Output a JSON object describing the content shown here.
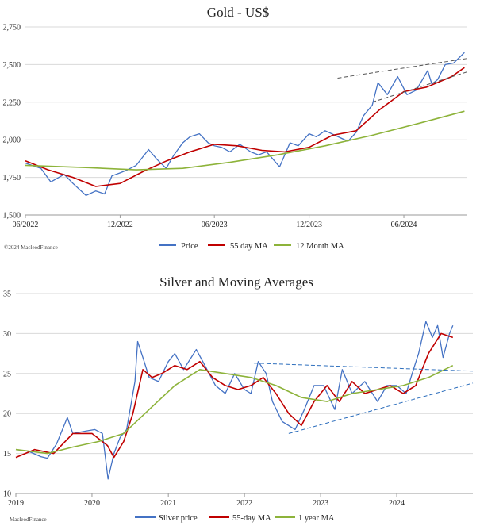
{
  "chart_data": [
    {
      "type": "line",
      "title": "Gold - US$",
      "credit": "©2024 MacleodFinance",
      "ylim": [
        1500,
        2750
      ],
      "yticks": [
        "1,500",
        "1,750",
        "2,000",
        "2,250",
        "2,500",
        "2,750"
      ],
      "yticks_values": [
        1500,
        1750,
        2000,
        2250,
        2500,
        2750
      ],
      "xlim": [
        "2022-06-01",
        "2024-09-30"
      ],
      "xticks": [
        "06/2022",
        "12/2022",
        "06/2023",
        "12/2023",
        "06/2024"
      ],
      "xticks_dates": [
        "2022-06-01",
        "2022-12-01",
        "2023-06-01",
        "2023-12-01",
        "2024-06-01"
      ],
      "grid": "horizontal",
      "legend": "bottom",
      "colors": {
        "price": "#4472c4",
        "ma55": "#c00000",
        "ma12": "#8db33a",
        "trend": "#555555"
      },
      "series": [
        {
          "name": "Price",
          "x": [
            "2022-06-01",
            "2022-07-01",
            "2022-07-20",
            "2022-08-15",
            "2022-09-01",
            "2022-09-26",
            "2022-10-15",
            "2022-11-01",
            "2022-11-15",
            "2022-12-01",
            "2022-12-15",
            "2023-01-01",
            "2023-01-25",
            "2023-02-10",
            "2023-02-28",
            "2023-03-15",
            "2023-04-01",
            "2023-04-15",
            "2023-05-03",
            "2023-05-20",
            "2023-06-01",
            "2023-06-15",
            "2023-07-01",
            "2023-07-20",
            "2023-08-10",
            "2023-08-25",
            "2023-09-10",
            "2023-10-05",
            "2023-10-25",
            "2023-11-10",
            "2023-12-01",
            "2023-12-15",
            "2024-01-01",
            "2024-01-20",
            "2024-02-14",
            "2024-03-01",
            "2024-03-15",
            "2024-04-01",
            "2024-04-12",
            "2024-04-30",
            "2024-05-20",
            "2024-06-07",
            "2024-06-25",
            "2024-07-17",
            "2024-07-25",
            "2024-08-05",
            "2024-08-20",
            "2024-09-05",
            "2024-09-20",
            "2024-09-26"
          ],
          "values": [
            1845,
            1810,
            1720,
            1770,
            1710,
            1630,
            1660,
            1640,
            1760,
            1780,
            1800,
            1830,
            1935,
            1870,
            1810,
            1900,
            1980,
            2020,
            2040,
            1980,
            1960,
            1950,
            1920,
            1970,
            1920,
            1900,
            1920,
            1820,
            1980,
            1960,
            2040,
            2020,
            2060,
            2030,
            1990,
            2050,
            2160,
            2230,
            2380,
            2300,
            2420,
            2300,
            2330,
            2460,
            2370,
            2400,
            2500,
            2510,
            2560,
            2580
          ]
        },
        {
          "name": "55 day MA",
          "x": [
            "2022-06-01",
            "2022-07-15",
            "2022-09-01",
            "2022-10-15",
            "2022-12-01",
            "2023-01-15",
            "2023-03-01",
            "2023-04-15",
            "2023-06-01",
            "2023-07-15",
            "2023-09-01",
            "2023-10-15",
            "2023-12-01",
            "2024-01-15",
            "2024-03-01",
            "2024-04-15",
            "2024-06-01",
            "2024-07-15",
            "2024-09-01",
            "2024-09-26"
          ],
          "values": [
            1860,
            1800,
            1750,
            1690,
            1710,
            1790,
            1860,
            1920,
            1970,
            1960,
            1930,
            1920,
            1950,
            2030,
            2060,
            2200,
            2320,
            2350,
            2420,
            2480
          ]
        },
        {
          "name": "12 Month MA",
          "x": [
            "2022-06-01",
            "2022-10-01",
            "2023-01-01",
            "2023-04-01",
            "2023-07-01",
            "2023-10-01",
            "2024-01-01",
            "2024-04-01",
            "2024-07-01",
            "2024-09-26"
          ],
          "values": [
            1830,
            1815,
            1800,
            1810,
            1850,
            1900,
            1960,
            2030,
            2110,
            2190
          ]
        }
      ],
      "trend_lines": [
        {
          "from": [
            "2024-01-25",
            2410
          ],
          "to": [
            "2024-09-30",
            2540
          ]
        },
        {
          "from": [
            "2024-04-01",
            2250
          ],
          "to": [
            "2024-09-30",
            2450
          ]
        }
      ]
    },
    {
      "type": "line",
      "title": "Silver and Moving Averages",
      "credit": "MacleodFinance",
      "ylim": [
        10,
        35
      ],
      "yticks": [
        "10",
        "15",
        "20",
        "25",
        "30",
        "35"
      ],
      "yticks_values": [
        10,
        15,
        20,
        25,
        30,
        35
      ],
      "xlim": [
        "2019-01-01",
        "2024-12-31"
      ],
      "xticks": [
        "2019",
        "2020",
        "2021",
        "2022",
        "2023",
        "2024"
      ],
      "xticks_dates": [
        "2019-01-01",
        "2020-01-01",
        "2021-01-01",
        "2022-01-01",
        "2023-01-01",
        "2024-01-01"
      ],
      "grid": "horizontal",
      "legend": "bottom",
      "colors": {
        "price": "#4472c4",
        "ma55": "#c00000",
        "ma1y": "#8db33a",
        "trend": "#2e6fbd"
      },
      "series": [
        {
          "name": "Silver price",
          "x": [
            "2019-01-01",
            "2019-03-01",
            "2019-05-01",
            "2019-06-01",
            "2019-07-15",
            "2019-09-05",
            "2019-10-01",
            "2019-12-01",
            "2020-01-15",
            "2020-02-20",
            "2020-03-18",
            "2020-04-15",
            "2020-05-15",
            "2020-06-15",
            "2020-07-25",
            "2020-08-07",
            "2020-09-01",
            "2020-10-01",
            "2020-11-15",
            "2021-01-01",
            "2021-02-01",
            "2021-03-15",
            "2021-05-15",
            "2021-06-15",
            "2021-08-15",
            "2021-10-01",
            "2021-11-15",
            "2022-01-01",
            "2022-02-01",
            "2022-03-08",
            "2022-04-15",
            "2022-05-15",
            "2022-07-01",
            "2022-09-01",
            "2022-10-15",
            "2022-12-01",
            "2023-01-15",
            "2023-03-10",
            "2023-04-15",
            "2023-06-01",
            "2023-08-01",
            "2023-10-01",
            "2023-11-15",
            "2024-01-01",
            "2024-02-15",
            "2024-03-15",
            "2024-04-15",
            "2024-05-20",
            "2024-06-20",
            "2024-07-15",
            "2024-08-10",
            "2024-09-10",
            "2024-09-26"
          ],
          "values": [
            15.5,
            15.3,
            14.6,
            14.4,
            16.2,
            19.5,
            17.5,
            17.8,
            18.0,
            17.5,
            11.8,
            15.0,
            17.0,
            18.0,
            24.0,
            29.0,
            27.0,
            24.5,
            24.0,
            26.5,
            27.5,
            25.5,
            28.0,
            26.5,
            23.5,
            22.5,
            25.0,
            23.0,
            22.5,
            26.5,
            25.0,
            21.5,
            19.0,
            18.0,
            20.5,
            23.5,
            23.5,
            20.5,
            25.5,
            22.5,
            24.0,
            21.5,
            23.5,
            23.5,
            22.5,
            25.0,
            27.5,
            31.5,
            29.5,
            31.0,
            27.0,
            30.0,
            31.0
          ]
        },
        {
          "name": "55-day MA",
          "x": [
            "2019-01-01",
            "2019-04-01",
            "2019-07-01",
            "2019-10-01",
            "2020-01-01",
            "2020-03-15",
            "2020-04-15",
            "2020-06-01",
            "2020-07-15",
            "2020-09-01",
            "2020-10-15",
            "2020-12-01",
            "2021-02-01",
            "2021-04-01",
            "2021-06-01",
            "2021-08-01",
            "2021-10-01",
            "2021-12-01",
            "2022-02-01",
            "2022-04-01",
            "2022-06-01",
            "2022-08-01",
            "2022-10-01",
            "2022-12-01",
            "2023-02-01",
            "2023-04-01",
            "2023-06-01",
            "2023-08-01",
            "2023-10-01",
            "2023-12-01",
            "2024-02-01",
            "2024-04-01",
            "2024-06-01",
            "2024-08-01",
            "2024-09-26"
          ],
          "values": [
            14.5,
            15.5,
            15.0,
            17.5,
            17.5,
            16.0,
            14.5,
            16.5,
            20.0,
            25.5,
            24.5,
            25.0,
            26.0,
            25.5,
            26.5,
            24.5,
            23.5,
            23.0,
            23.5,
            24.5,
            22.5,
            20.0,
            18.5,
            21.5,
            23.5,
            21.5,
            24.0,
            22.5,
            23.0,
            23.5,
            22.5,
            23.5,
            27.5,
            30.0,
            29.5
          ]
        },
        {
          "name": "1 year MA",
          "x": [
            "2019-01-01",
            "2019-06-01",
            "2019-10-01",
            "2020-02-01",
            "2020-06-01",
            "2020-10-01",
            "2021-02-01",
            "2021-06-01",
            "2021-10-01",
            "2022-02-01",
            "2022-06-01",
            "2022-10-01",
            "2023-02-01",
            "2023-06-01",
            "2023-10-01",
            "2024-02-01",
            "2024-06-01",
            "2024-09-26"
          ],
          "values": [
            15.5,
            15.0,
            15.8,
            16.5,
            17.5,
            20.5,
            23.5,
            25.5,
            25.0,
            24.5,
            23.5,
            22.0,
            21.5,
            22.5,
            23.0,
            23.5,
            24.5,
            26.0
          ]
        }
      ],
      "trend_lines": [
        {
          "from": [
            "2022-02-15",
            26.3
          ],
          "to": [
            "2024-12-31",
            25.3
          ]
        },
        {
          "from": [
            "2022-08-01",
            17.5
          ],
          "to": [
            "2024-12-31",
            23.8
          ]
        }
      ]
    }
  ],
  "legends": [
    {
      "items": [
        "Price",
        "55 day MA",
        "12 Month MA"
      ]
    },
    {
      "items": [
        "Silver price",
        "55-day MA",
        "1 year MA"
      ]
    }
  ]
}
